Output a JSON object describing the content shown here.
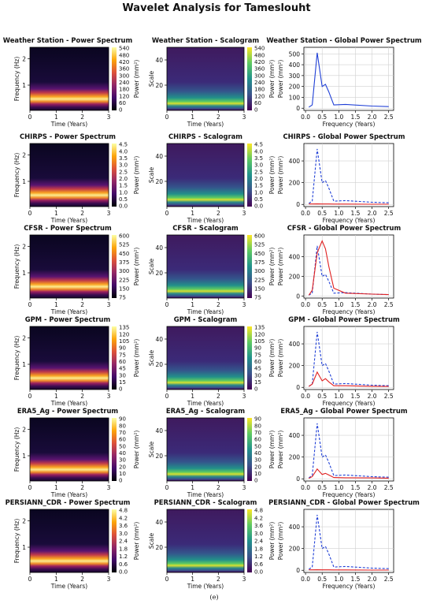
{
  "title": "Wavelet Analysis for Tameslouht",
  "caption": "(e)",
  "colors": {
    "reference": "#1f3fd6",
    "dataset": "#e02020",
    "inferno": [
      "#000004",
      "#420a68",
      "#932667",
      "#dd513a",
      "#fca50a",
      "#fcffa4"
    ],
    "viridis": [
      "#440154",
      "#3b528b",
      "#21918c",
      "#5ec962",
      "#fde725"
    ]
  },
  "axes": {
    "time_label": "Time (Years)",
    "freq_label": "Frequency (Hz)",
    "scale_label": "Scale",
    "gps_x_label": "Frequency (Years)",
    "power_label": "Power (mm²)",
    "time_ticks": [
      "0",
      "1",
      "2",
      "3"
    ],
    "freq_ticks": [
      "1",
      "2"
    ],
    "scale_ticks": [
      "20",
      "40"
    ],
    "gps_x_ticks": [
      "0.0",
      "0.5",
      "1.0",
      "1.5",
      "2.0",
      "2.5"
    ]
  },
  "rows": [
    {
      "name": "Weather Station",
      "spectrum_title": "Weather Station - Power Spectrum",
      "scalogram_title": "Weather Station - Scalogram",
      "global_title": "Weather Station - Global Power Spectrum",
      "cbar_ticks": [
        "540",
        "480",
        "420",
        "360",
        "300",
        "240",
        "180",
        "120",
        "60",
        "0"
      ],
      "gps_y_ticks": [
        "0",
        "100",
        "200",
        "300",
        "400",
        "500"
      ],
      "gps_ymax": 560
    },
    {
      "name": "CHIRPS",
      "spectrum_title": "CHIRPS - Power Spectrum",
      "scalogram_title": "CHIRPS - Scalogram",
      "global_title": "CHIRPS - Global Power Spectrum",
      "cbar_ticks": [
        "4.5",
        "4.0",
        "3.5",
        "3.0",
        "2.5",
        "2.0",
        "1.5",
        "1.0",
        "0.5",
        "0.0"
      ],
      "gps_y_ticks": [
        "0",
        "200",
        "400"
      ],
      "gps_ymax": 560
    },
    {
      "name": "CFSR",
      "spectrum_title": "CFSR - Power Spectrum",
      "scalogram_title": "CFSR - Scalogram",
      "global_title": "CFSR - Global Power Spectrum",
      "cbar_ticks": [
        "600",
        "525",
        "450",
        "375",
        "300",
        "225",
        "150",
        "75"
      ],
      "gps_y_ticks": [
        "0",
        "200",
        "400"
      ],
      "gps_ymax": 620
    },
    {
      "name": "GPM",
      "spectrum_title": "GPM - Power Spectrum",
      "scalogram_title": "GPM - Scalogram",
      "global_title": "GPM - Global Power Spectrum",
      "cbar_ticks": [
        "135",
        "120",
        "105",
        "90",
        "75",
        "60",
        "45",
        "30",
        "15",
        "0"
      ],
      "gps_y_ticks": [
        "0",
        "200",
        "400"
      ],
      "gps_ymax": 560
    },
    {
      "name": "ERA5_Ag",
      "spectrum_title": "ERA5_Ag - Power Spectrum",
      "scalogram_title": "ERA5_Ag - Scalogram",
      "global_title": "ERA5_Ag - Global Power Spectrum",
      "cbar_ticks": [
        "90",
        "80",
        "70",
        "60",
        "50",
        "40",
        "30",
        "20",
        "10",
        "0"
      ],
      "gps_y_ticks": [
        "0",
        "200",
        "400"
      ],
      "gps_ymax": 560
    },
    {
      "name": "PERSIANN_CDR",
      "spectrum_title": "PERSIANN_CDR - Power Spectrum",
      "scalogram_title": "PERSIANN_CDR - Scalogram",
      "global_title": "PERSIANN_CDR - Global Power Spectrum",
      "cbar_ticks": [
        "4.8",
        "4.2",
        "3.6",
        "3.0",
        "2.4",
        "1.8",
        "1.2",
        "0.6",
        "0.0"
      ],
      "gps_y_ticks": [
        "0",
        "200",
        "400"
      ],
      "gps_ymax": 560
    }
  ],
  "chart_data": {
    "type": "line",
    "title": "Wavelet Analysis for Tameslouht",
    "xlabel": "Frequency (Years)",
    "ylabel": "Power (mm²)",
    "x": [
      0.1,
      0.2,
      0.35,
      0.5,
      0.6,
      0.7,
      0.85,
      1.2,
      2.0,
      2.5
    ],
    "series": [
      {
        "name": "Weather Station",
        "values": [
          10,
          30,
          510,
          200,
          220,
          150,
          30,
          35,
          20,
          15
        ]
      },
      {
        "name": "CHIRPS",
        "values": [
          4,
          4,
          5,
          4,
          4,
          4,
          3,
          3,
          2,
          2
        ]
      },
      {
        "name": "CFSR",
        "values": [
          10,
          60,
          440,
          560,
          480,
          300,
          80,
          30,
          20,
          15
        ]
      },
      {
        "name": "GPM",
        "values": [
          8,
          30,
          140,
          60,
          80,
          50,
          15,
          15,
          10,
          8
        ]
      },
      {
        "name": "ERA5_Ag",
        "values": [
          5,
          20,
          90,
          40,
          50,
          35,
          12,
          10,
          8,
          6
        ]
      },
      {
        "name": "PERSIANN_CDR",
        "values": [
          4,
          4,
          5,
          4,
          4,
          4,
          3,
          3,
          2,
          2
        ]
      }
    ]
  }
}
